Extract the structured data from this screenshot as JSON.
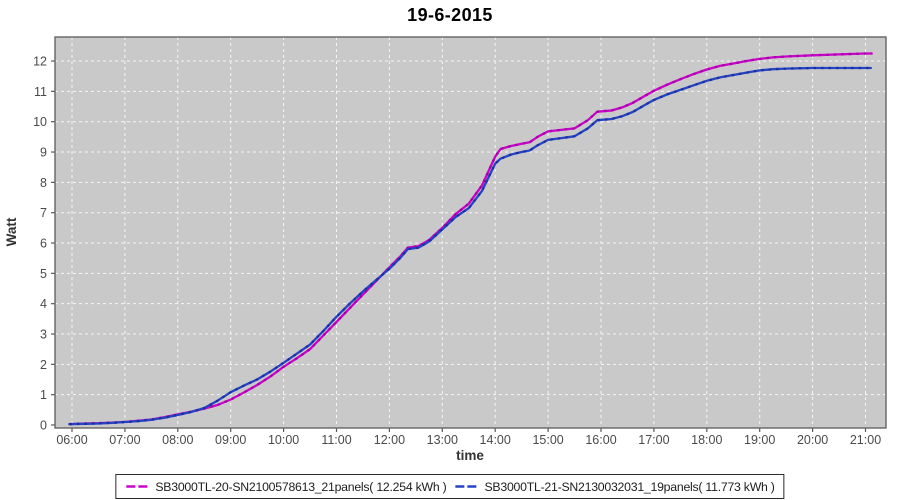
{
  "title": "19-6-2015",
  "colors": {
    "plot_bg": "#c9c9c9",
    "grid": "#f5f5f5",
    "axis": "#5a5a5a",
    "tick_text": "#4a4a4a",
    "series1": "#cc00cc",
    "series2": "#2443c6"
  },
  "chart_data": {
    "type": "line",
    "title": "19-6-2015",
    "xlabel": "time",
    "ylabel": "Watt",
    "x_ticks": [
      "06:00",
      "07:00",
      "08:00",
      "09:00",
      "10:00",
      "11:00",
      "12:00",
      "13:00",
      "14:00",
      "15:00",
      "16:00",
      "17:00",
      "18:00",
      "19:00",
      "20:00",
      "21:00"
    ],
    "y_ticks": [
      0,
      1,
      2,
      3,
      4,
      5,
      6,
      7,
      8,
      9,
      10,
      11,
      12
    ],
    "xlim_hours": [
      5.68,
      21.4
    ],
    "ylim": [
      0,
      12.8
    ],
    "grid": "white dashed, horizontal and vertical at every tick",
    "legend_position": "bottom-center",
    "series": [
      {
        "name": "SB3000TL-20-SN2100578613_21panels( 12.254 kWh )",
        "total_kwh": 12.254,
        "color": "#cc00cc",
        "marker_color": "#a300a3",
        "points": [
          [
            5.95,
            0.03
          ],
          [
            6.25,
            0.05
          ],
          [
            6.5,
            0.06
          ],
          [
            6.75,
            0.08
          ],
          [
            7,
            0.1
          ],
          [
            7.25,
            0.14
          ],
          [
            7.5,
            0.18
          ],
          [
            7.75,
            0.26
          ],
          [
            8,
            0.35
          ],
          [
            8.25,
            0.44
          ],
          [
            8.5,
            0.54
          ],
          [
            8.75,
            0.66
          ],
          [
            9,
            0.84
          ],
          [
            9.25,
            1.07
          ],
          [
            9.5,
            1.32
          ],
          [
            9.75,
            1.6
          ],
          [
            10,
            1.92
          ],
          [
            10.25,
            2.2
          ],
          [
            10.5,
            2.5
          ],
          [
            10.75,
            2.95
          ],
          [
            11,
            3.4
          ],
          [
            11.25,
            3.85
          ],
          [
            11.5,
            4.3
          ],
          [
            11.75,
            4.75
          ],
          [
            12,
            5.2
          ],
          [
            12.2,
            5.55
          ],
          [
            12.35,
            5.85
          ],
          [
            12.55,
            5.9
          ],
          [
            12.75,
            6.1
          ],
          [
            13,
            6.5
          ],
          [
            13.25,
            6.95
          ],
          [
            13.5,
            7.3
          ],
          [
            13.75,
            7.9
          ],
          [
            14,
            8.85
          ],
          [
            14.1,
            9.1
          ],
          [
            14.3,
            9.2
          ],
          [
            14.5,
            9.27
          ],
          [
            14.65,
            9.32
          ],
          [
            14.8,
            9.5
          ],
          [
            15,
            9.68
          ],
          [
            15.25,
            9.73
          ],
          [
            15.5,
            9.78
          ],
          [
            15.75,
            10.05
          ],
          [
            15.93,
            10.33
          ],
          [
            16.2,
            10.37
          ],
          [
            16.4,
            10.47
          ],
          [
            16.6,
            10.62
          ],
          [
            16.8,
            10.82
          ],
          [
            17,
            11.02
          ],
          [
            17.25,
            11.22
          ],
          [
            17.5,
            11.4
          ],
          [
            17.75,
            11.57
          ],
          [
            18,
            11.72
          ],
          [
            18.25,
            11.84
          ],
          [
            18.5,
            11.92
          ],
          [
            18.75,
            12.0
          ],
          [
            19,
            12.07
          ],
          [
            19.25,
            12.12
          ],
          [
            19.5,
            12.15
          ],
          [
            19.75,
            12.17
          ],
          [
            20,
            12.19
          ],
          [
            20.5,
            12.22
          ],
          [
            21,
            12.25
          ],
          [
            21.12,
            12.25
          ]
        ]
      },
      {
        "name": "SB3000TL-21-SN2130032031_19panels( 11.773 kWh )",
        "total_kwh": 11.773,
        "color": "#2443c6",
        "marker_color": "#1b30a0",
        "points": [
          [
            5.95,
            0.03
          ],
          [
            6.25,
            0.04
          ],
          [
            6.5,
            0.05
          ],
          [
            6.75,
            0.07
          ],
          [
            7,
            0.1
          ],
          [
            7.25,
            0.13
          ],
          [
            7.5,
            0.17
          ],
          [
            7.75,
            0.24
          ],
          [
            8,
            0.33
          ],
          [
            8.25,
            0.43
          ],
          [
            8.5,
            0.56
          ],
          [
            8.75,
            0.8
          ],
          [
            9,
            1.08
          ],
          [
            9.25,
            1.3
          ],
          [
            9.5,
            1.5
          ],
          [
            9.75,
            1.76
          ],
          [
            10,
            2.05
          ],
          [
            10.25,
            2.35
          ],
          [
            10.5,
            2.65
          ],
          [
            10.75,
            3.1
          ],
          [
            11,
            3.57
          ],
          [
            11.25,
            4.0
          ],
          [
            11.5,
            4.4
          ],
          [
            11.75,
            4.78
          ],
          [
            12,
            5.15
          ],
          [
            12.2,
            5.5
          ],
          [
            12.35,
            5.8
          ],
          [
            12.55,
            5.85
          ],
          [
            12.75,
            6.05
          ],
          [
            13,
            6.45
          ],
          [
            13.25,
            6.85
          ],
          [
            13.5,
            7.15
          ],
          [
            13.75,
            7.72
          ],
          [
            14,
            8.62
          ],
          [
            14.1,
            8.78
          ],
          [
            14.3,
            8.92
          ],
          [
            14.5,
            9.0
          ],
          [
            14.65,
            9.05
          ],
          [
            14.8,
            9.22
          ],
          [
            15,
            9.4
          ],
          [
            15.25,
            9.46
          ],
          [
            15.5,
            9.52
          ],
          [
            15.75,
            9.78
          ],
          [
            15.93,
            10.05
          ],
          [
            16.2,
            10.09
          ],
          [
            16.4,
            10.18
          ],
          [
            16.6,
            10.32
          ],
          [
            16.8,
            10.52
          ],
          [
            17,
            10.72
          ],
          [
            17.25,
            10.9
          ],
          [
            17.5,
            11.05
          ],
          [
            17.75,
            11.2
          ],
          [
            18,
            11.35
          ],
          [
            18.25,
            11.46
          ],
          [
            18.5,
            11.54
          ],
          [
            18.75,
            11.62
          ],
          [
            19,
            11.69
          ],
          [
            19.25,
            11.73
          ],
          [
            19.5,
            11.75
          ],
          [
            19.75,
            11.76
          ],
          [
            20,
            11.77
          ],
          [
            20.5,
            11.77
          ],
          [
            21,
            11.77
          ],
          [
            21.1,
            11.77
          ]
        ]
      }
    ]
  }
}
